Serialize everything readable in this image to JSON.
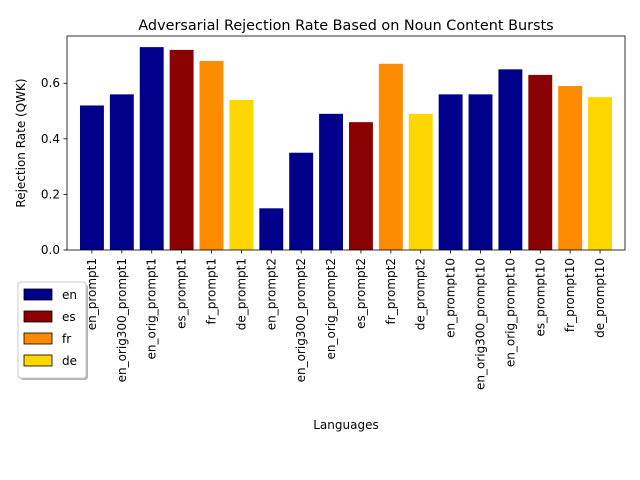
{
  "chart_data": {
    "type": "bar",
    "title": "Adversarial Rejection Rate Based on Noun Content Bursts",
    "xlabel": "Languages",
    "ylabel": "Rejection Rate (QWK)",
    "ylim": [
      0,
      0.77
    ],
    "yticks": [
      0.0,
      0.2,
      0.4,
      0.6
    ],
    "grid": false,
    "legend_position": "lower-left",
    "categories": [
      "en_prompt1",
      "en_orig300_prompt1",
      "en_orig_prompt1",
      "es_prompt1",
      "fr_prompt1",
      "de_prompt1",
      "en_prompt2",
      "en_orig300_prompt2",
      "en_orig_prompt2",
      "es_prompt2",
      "fr_prompt2",
      "de_prompt2",
      "en_prompt10",
      "en_orig300_prompt10",
      "en_orig_prompt10",
      "es_prompt10",
      "fr_prompt10",
      "de_prompt10"
    ],
    "values": [
      0.52,
      0.56,
      0.73,
      0.72,
      0.68,
      0.54,
      0.15,
      0.35,
      0.49,
      0.46,
      0.67,
      0.49,
      0.56,
      0.56,
      0.65,
      0.63,
      0.59,
      0.55
    ],
    "bar_languages": [
      "en",
      "en",
      "en",
      "es",
      "fr",
      "de",
      "en",
      "en",
      "en",
      "es",
      "fr",
      "de",
      "en",
      "en",
      "en",
      "es",
      "fr",
      "de"
    ],
    "legend": [
      {
        "label": "en",
        "color": "#00008b"
      },
      {
        "label": "es",
        "color": "#8b0000"
      },
      {
        "label": "fr",
        "color": "#ff8c00"
      },
      {
        "label": "de",
        "color": "#ffd700"
      }
    ]
  }
}
